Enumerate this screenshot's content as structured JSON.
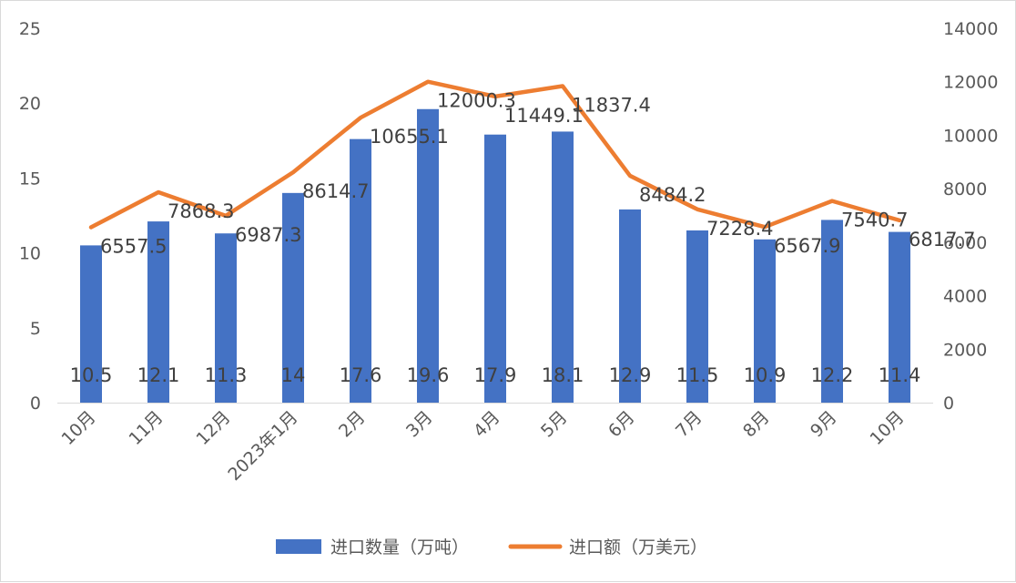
{
  "chart_data": {
    "type": "bar+line",
    "categories": [
      "10月",
      "11月",
      "12月",
      "2023年1月",
      "2月",
      "3月",
      "4月",
      "5月",
      "6月",
      "7月",
      "8月",
      "9月",
      "10月"
    ],
    "series": [
      {
        "name": "进口数量（万吨）",
        "type": "bar",
        "axis": "left",
        "color": "#4472C4",
        "values": [
          10.5,
          12.1,
          11.3,
          14,
          17.6,
          19.6,
          17.9,
          18.1,
          12.9,
          11.5,
          10.9,
          12.2,
          11.4
        ],
        "labels": [
          "10.5",
          "12.1",
          "11.3",
          "14",
          "17.6",
          "19.6",
          "17.9",
          "18.1",
          "12.9",
          "11.5",
          "10.9",
          "12.2",
          "11.4"
        ]
      },
      {
        "name": "进口额（万美元）",
        "type": "line",
        "axis": "right",
        "color": "#ED7D31",
        "values": [
          6557.5,
          7868.3,
          6987.3,
          8614.7,
          10655.1,
          12000.3,
          11449.1,
          11837.4,
          8484.2,
          7228.4,
          6567.9,
          7540.7,
          6817.7
        ],
        "labels": [
          "6557.5",
          "7868.3",
          "6987.3",
          "8614.7",
          "10655.1",
          "12000.3",
          "11449.1",
          "11837.4",
          "8484.2",
          "7228.4",
          "6567.9",
          "7540.7",
          "6817.7"
        ]
      }
    ],
    "y_left": {
      "min": 0,
      "max": 25,
      "ticks": [
        "0",
        "5",
        "10",
        "15",
        "20",
        "25"
      ]
    },
    "y_right": {
      "min": 0,
      "max": 14000,
      "ticks": [
        "0",
        "2000",
        "4000",
        "6000",
        "8000",
        "10000",
        "12000",
        "14000"
      ]
    },
    "grid": false,
    "legend": "bottom"
  }
}
